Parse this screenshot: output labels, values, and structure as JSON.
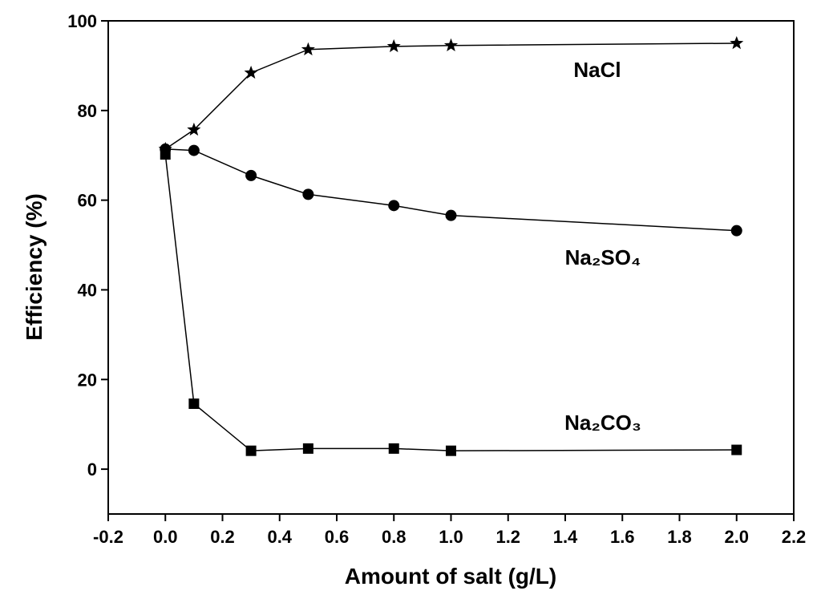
{
  "chart_data": {
    "type": "line",
    "xlabel": "Amount of salt (g/L)",
    "ylabel": "Efficiency (%)",
    "x": [
      0,
      0.1,
      0.3,
      0.5,
      0.8,
      1.0,
      2.0
    ],
    "series": [
      {
        "name": "NaCl",
        "color": "#000000",
        "marker": "star",
        "values": [
          71.4,
          75.7,
          88.4,
          93.6,
          94.3,
          94.5,
          95.0
        ]
      },
      {
        "name": "Na₂SO₄",
        "color": "#000000",
        "marker": "circle",
        "values": [
          71.4,
          71.1,
          65.5,
          61.3,
          58.8,
          56.6,
          53.2
        ]
      },
      {
        "name": "Na₂CO₃",
        "color": "#000000",
        "marker": "square",
        "values": [
          70.2,
          14.6,
          4.1,
          4.6,
          4.6,
          4.1,
          4.3
        ]
      }
    ],
    "xlim": [
      -0.2,
      2.2
    ],
    "ylim": [
      -10,
      100
    ],
    "xticks": [
      -0.2,
      {
        "value": 0,
        "label": "0.0"
      },
      0.2,
      0.4,
      0.6,
      0.8,
      {
        "value": 1,
        "label": "1.0"
      },
      1.2,
      1.4,
      1.6,
      1.8,
      {
        "value": 2,
        "label": "2.0"
      },
      2.2
    ],
    "yticks": [
      0,
      20,
      40,
      60,
      80,
      100
    ],
    "grid": false
  }
}
